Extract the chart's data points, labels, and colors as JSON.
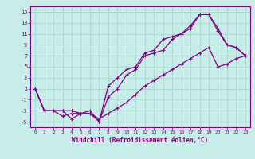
{
  "xlabel": "Windchill (Refroidissement éolien,°C)",
  "bg_color": "#c8ede8",
  "grid_color": "#a8d8d0",
  "line_color": "#800080",
  "marker": "+",
  "xlim": [
    -0.5,
    23.5
  ],
  "ylim": [
    -6,
    16
  ],
  "xticks": [
    0,
    1,
    2,
    3,
    4,
    5,
    6,
    7,
    8,
    9,
    10,
    11,
    12,
    13,
    14,
    15,
    16,
    17,
    18,
    19,
    20,
    21,
    22,
    23
  ],
  "yticks": [
    -5,
    -3,
    -1,
    1,
    3,
    5,
    7,
    9,
    11,
    13,
    15
  ],
  "line1_x": [
    0,
    1,
    2,
    3,
    4,
    5,
    6,
    7,
    8,
    9,
    10,
    11,
    12,
    13,
    14,
    15,
    16,
    17,
    18,
    19,
    20,
    21,
    22,
    23
  ],
  "line1_y": [
    1,
    -3,
    -3,
    -3,
    -4.5,
    -3.5,
    -3.5,
    -5,
    -0.5,
    1,
    3.5,
    4.5,
    7,
    7.5,
    8,
    10,
    11,
    12,
    14.5,
    14.5,
    11.5,
    9,
    8.5,
    7
  ],
  "line2_x": [
    0,
    1,
    2,
    3,
    4,
    5,
    6,
    7,
    8,
    9,
    10,
    11,
    12,
    13,
    14,
    15,
    16,
    17,
    18,
    19,
    20,
    21,
    22,
    23
  ],
  "line2_y": [
    1,
    -3,
    -3,
    -3,
    -3,
    -3.5,
    -3,
    -5,
    1.5,
    3,
    4.5,
    5,
    7.5,
    8,
    10,
    10.5,
    11,
    12.5,
    14.5,
    14.5,
    12,
    9,
    8.5,
    7
  ],
  "line3_x": [
    0,
    1,
    2,
    3,
    4,
    5,
    6,
    7,
    8,
    9,
    10,
    11,
    12,
    13,
    14,
    15,
    16,
    17,
    18,
    19,
    20,
    21,
    22,
    23
  ],
  "line3_y": [
    1,
    -3,
    -3,
    -4,
    -3.5,
    -3.5,
    -3.5,
    -4.5,
    -3.5,
    -2.5,
    -1.5,
    0,
    1.5,
    2.5,
    3.5,
    4.5,
    5.5,
    6.5,
    7.5,
    8.5,
    5,
    5.5,
    6.5,
    7
  ]
}
